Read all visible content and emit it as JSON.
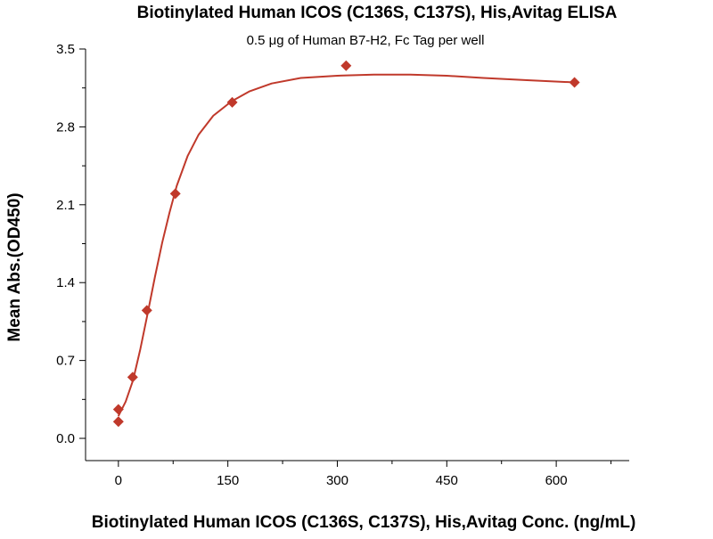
{
  "chart_data": {
    "type": "scatter",
    "title": "Biotinylated Human ICOS (C136S, C137S), His,Avitag ELISA",
    "subtitle": "0.5 μg of Human B7-H2, Fc Tag per well",
    "xlabel": "Biotinylated Human ICOS (C136S, C137S), His,Avitag Conc. (ng/mL)",
    "ylabel": "Mean Abs.(OD450)",
    "xlim": [
      -45,
      700
    ],
    "ylim": [
      -0.2,
      3.5
    ],
    "x_ticks": [
      0,
      150,
      300,
      450,
      600
    ],
    "x_tick_labels": [
      "0",
      "150",
      "300",
      "450",
      "600"
    ],
    "y_ticks": [
      0.0,
      0.7,
      1.4,
      2.1,
      2.8,
      3.5
    ],
    "y_tick_labels": [
      "0.0",
      "0.7",
      "1.4",
      "2.1",
      "2.8",
      "3.5"
    ],
    "grid": false,
    "legend": "none",
    "series": [
      {
        "marker": "diamond",
        "color": "#c0392b",
        "points": [
          {
            "x": 0,
            "y": 0.15
          },
          {
            "x": 0,
            "y": 0.26
          },
          {
            "x": 19.5,
            "y": 0.55
          },
          {
            "x": 39,
            "y": 1.15
          },
          {
            "x": 78,
            "y": 2.2
          },
          {
            "x": 156,
            "y": 3.02
          },
          {
            "x": 312,
            "y": 3.35
          },
          {
            "x": 625,
            "y": 3.2
          }
        ]
      }
    ],
    "fit_curve": {
      "color": "#c0392b",
      "points": [
        {
          "x": 0,
          "y": 0.2
        },
        {
          "x": 10,
          "y": 0.33
        },
        {
          "x": 20,
          "y": 0.52
        },
        {
          "x": 30,
          "y": 0.8
        },
        {
          "x": 40,
          "y": 1.12
        },
        {
          "x": 50,
          "y": 1.45
        },
        {
          "x": 60,
          "y": 1.76
        },
        {
          "x": 70,
          "y": 2.03
        },
        {
          "x": 80,
          "y": 2.27
        },
        {
          "x": 95,
          "y": 2.54
        },
        {
          "x": 110,
          "y": 2.73
        },
        {
          "x": 130,
          "y": 2.9
        },
        {
          "x": 155,
          "y": 3.03
        },
        {
          "x": 180,
          "y": 3.12
        },
        {
          "x": 210,
          "y": 3.19
        },
        {
          "x": 250,
          "y": 3.24
        },
        {
          "x": 300,
          "y": 3.26
        },
        {
          "x": 350,
          "y": 3.27
        },
        {
          "x": 400,
          "y": 3.27
        },
        {
          "x": 450,
          "y": 3.26
        },
        {
          "x": 500,
          "y": 3.24
        },
        {
          "x": 560,
          "y": 3.22
        },
        {
          "x": 625,
          "y": 3.2
        }
      ]
    }
  }
}
